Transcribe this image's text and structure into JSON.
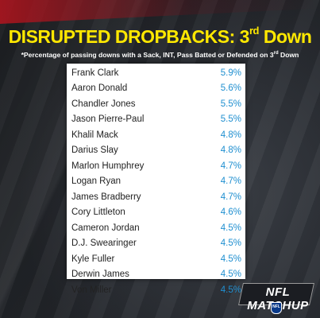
{
  "header": {
    "title_main": "DISRUPTED DROPBACKS: 3",
    "title_sup": "rd",
    "title_end": " Down",
    "subtitle_main": "*Percentage of passing downs with a Sack, INT, Pass Batted or Defended on 3",
    "subtitle_sup": "rd",
    "subtitle_end": " Down"
  },
  "colors": {
    "title": "#ffe800",
    "value": "#1f8fd0",
    "name": "#222222",
    "panel": "#ffffff"
  },
  "logo": {
    "text": "NFL MATCHUP",
    "shield_text": "NFL"
  },
  "chart_data": {
    "type": "table",
    "title": "DISRUPTED DROPBACKS: 3rd Down",
    "subtitle": "*Percentage of passing downs with a Sack, INT, Pass Batted or Defended on 3rd Down",
    "categories": [
      "Frank Clark",
      "Aaron Donald",
      "Chandler Jones",
      "Jason Pierre-Paul",
      "Khalil Mack",
      "Darius Slay",
      "Marlon Humphrey",
      "Logan Ryan",
      "James Bradberry",
      "Cory Littleton",
      "Cameron Jordan",
      "D.J. Swearinger",
      "Kyle Fuller",
      "Derwin James",
      "Von Miller"
    ],
    "values": [
      "5.9%",
      "5.6%",
      "5.5%",
      "5.5%",
      "4.8%",
      "4.8%",
      "4.7%",
      "4.7%",
      "4.7%",
      "4.6%",
      "4.5%",
      "4.5%",
      "4.5%",
      "4.5%",
      "4.5%"
    ]
  }
}
